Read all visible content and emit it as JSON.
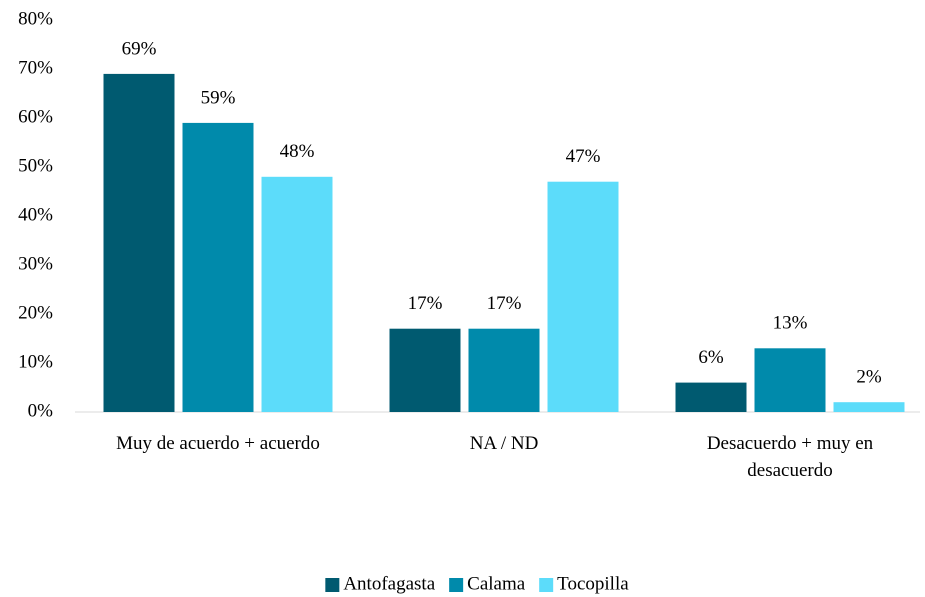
{
  "chart_data": {
    "type": "bar",
    "categories": [
      "Muy de acuerdo + acuerdo",
      "NA / ND",
      "Desacuerdo + muy en desacuerdo"
    ],
    "series": [
      {
        "name": "Antofagasta",
        "color": "#005a70",
        "values": [
          69,
          17,
          6
        ],
        "value_labels": [
          "69%",
          "17%",
          "6%"
        ]
      },
      {
        "name": "Calama",
        "color": "#008aab",
        "values": [
          59,
          17,
          13
        ],
        "value_labels": [
          "59%",
          "17%",
          "13%"
        ]
      },
      {
        "name": "Tocopilla",
        "color": "#5cdcfa",
        "values": [
          48,
          47,
          2
        ],
        "value_labels": [
          "48%",
          "47%",
          "2%"
        ]
      }
    ],
    "ylim": [
      0,
      80
    ],
    "yticks": [
      {
        "value": 0,
        "label": "0%"
      },
      {
        "value": 10,
        "label": "10%"
      },
      {
        "value": 20,
        "label": "20%"
      },
      {
        "value": 30,
        "label": "30%"
      },
      {
        "value": 40,
        "label": "40%"
      },
      {
        "value": 50,
        "label": "50%"
      },
      {
        "value": 60,
        "label": "60%"
      },
      {
        "value": 70,
        "label": "70%"
      },
      {
        "value": 80,
        "label": "80%"
      }
    ],
    "grid": false,
    "legend": "bottom"
  }
}
